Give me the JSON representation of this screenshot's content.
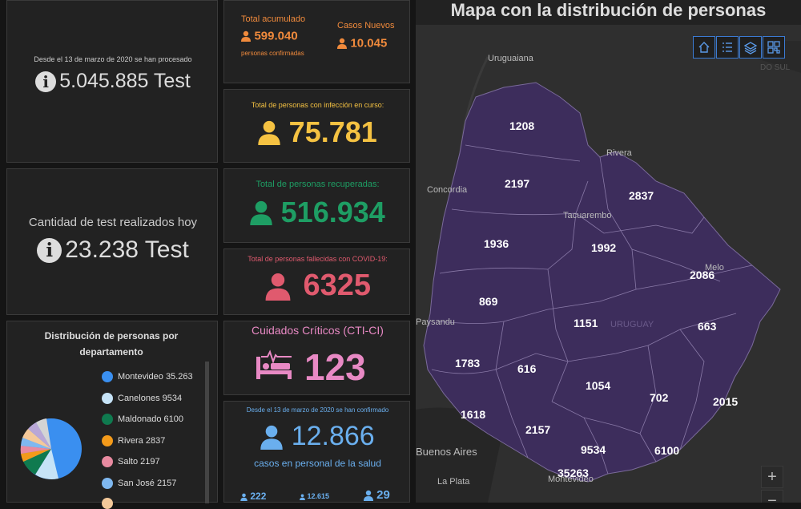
{
  "tests_total": {
    "caption": "Desde el 13 de marzo de 2020 se han procesado",
    "value": "5.045.885 Test"
  },
  "accumulated": {
    "label": "Total acumulado",
    "value": "599.040",
    "sublabel": "personas confirmadas"
  },
  "new_cases": {
    "label": "Casos Nuevos",
    "value": "10.045"
  },
  "active": {
    "label": "Total de personas con infección en curso:",
    "value": "75.781"
  },
  "tests_today": {
    "label": "Cantidad de test realizados hoy",
    "value": "23.238 Test"
  },
  "recovered": {
    "label": "Total de personas recuperadas:",
    "value": "516.934"
  },
  "deceased": {
    "label": "Total de personas fallecidas con COVID-19:",
    "value": "6325"
  },
  "critical": {
    "label": "Cuidados Críticos (CTI-CI)",
    "value": "123"
  },
  "health_staff": {
    "caption": "Desde el 13 de marzo de 2020 se han confirmado",
    "value": "12.866",
    "sublabel": "casos en personal de la salud",
    "bottom_values": [
      "222",
      "12.615",
      "29"
    ]
  },
  "distribution": {
    "title": "Distribución de personas por departamento",
    "items": [
      {
        "name": "Montevideo",
        "value": "35.263",
        "color": "#3a8ff0"
      },
      {
        "name": "Canelones",
        "value": "9534",
        "color": "#c6e3f7"
      },
      {
        "name": "Maldonado",
        "value": "6100",
        "color": "#0f7a4f"
      },
      {
        "name": "Rivera",
        "value": "2837",
        "color": "#f39a1a"
      },
      {
        "name": "Salto",
        "value": "2197",
        "color": "#e88aa0"
      },
      {
        "name": "San José",
        "value": "2157",
        "color": "#7fb8f0"
      },
      {
        "name": "",
        "value": "",
        "color": "#f4c99a"
      }
    ]
  },
  "map": {
    "title": "Mapa con la distribución de personas",
    "places": [
      "Uruguaiana",
      "Concordia",
      "Tacuarembo",
      "Melo",
      "URUGUAY",
      "Rivera",
      "Paysandu",
      "Buenos Aires",
      "La Plata",
      "Montevideo",
      "DO SUL"
    ],
    "regions": [
      "1208",
      "2197",
      "2837",
      "1936",
      "1992",
      "2086",
      "869",
      "1151",
      "663",
      "1783",
      "616",
      "1054",
      "702",
      "2015",
      "1618",
      "2157",
      "9534",
      "6100",
      "35263"
    ],
    "zoom_in": "+",
    "zoom_out": "−"
  }
}
